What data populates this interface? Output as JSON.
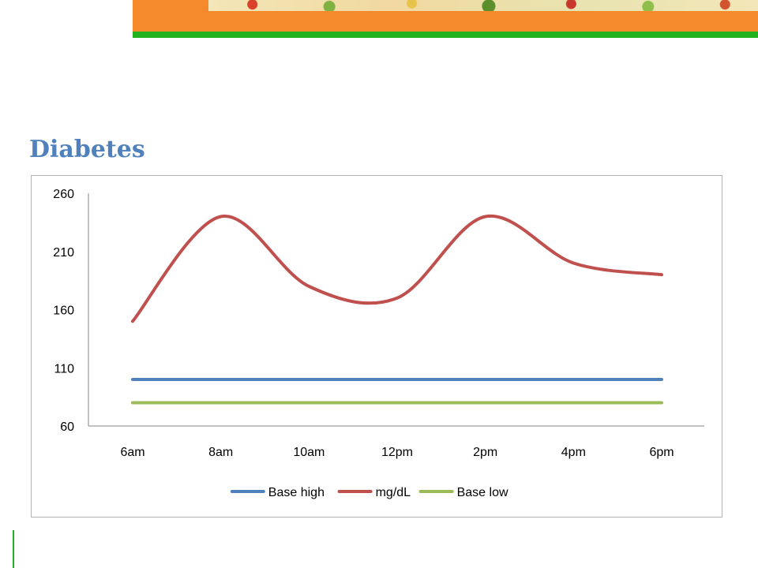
{
  "slide": {
    "title": "Diabetes"
  },
  "colors": {
    "banner_orange": "#f58a2d",
    "banner_green": "#22b21e",
    "title": "#4f81bd",
    "base_high": "#4f81bd",
    "mgdl": "#c0504d",
    "base_low": "#9bbb59"
  },
  "chart_data": {
    "type": "line",
    "title": "",
    "xlabel": "",
    "ylabel": "",
    "categories": [
      "6am",
      "8am",
      "10am",
      "12pm",
      "2pm",
      "4pm",
      "6pm"
    ],
    "ylim": [
      60,
      260
    ],
    "yticks": [
      60,
      110,
      160,
      210,
      260
    ],
    "grid": false,
    "legend_position": "bottom",
    "smoothed": true,
    "series": [
      {
        "name": "Base high",
        "color": "#4f81bd",
        "values": [
          100,
          100,
          100,
          100,
          100,
          100,
          100
        ]
      },
      {
        "name": "mg/dL",
        "color": "#c0504d",
        "values": [
          150,
          240,
          180,
          170,
          240,
          200,
          190
        ]
      },
      {
        "name": "Base low",
        "color": "#9bbb59",
        "values": [
          80,
          80,
          80,
          80,
          80,
          80,
          80
        ]
      }
    ]
  }
}
